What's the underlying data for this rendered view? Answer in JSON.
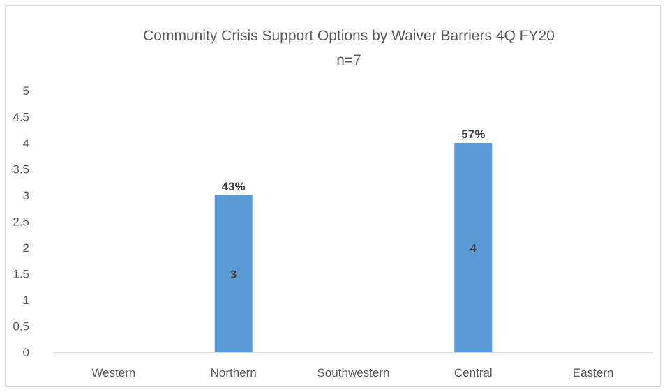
{
  "chart_data": {
    "type": "bar",
    "title": "Community Crisis Support Options by Waiver Barriers  4Q FY20",
    "subtitle": "n=7",
    "categories": [
      "Western",
      "Northern",
      "Southwestern",
      "Central",
      "Eastern"
    ],
    "values": [
      0,
      3,
      0,
      4,
      0
    ],
    "percent_labels": [
      "",
      "43%",
      "",
      "57%",
      ""
    ],
    "value_labels": [
      "",
      "3",
      "",
      "4",
      ""
    ],
    "ylim": [
      0,
      5
    ],
    "yticks": [
      "0",
      "0.5",
      "1",
      "1.5",
      "2",
      "2.5",
      "3",
      "3.5",
      "4",
      "4.5",
      "5"
    ],
    "grid": false,
    "legend": "none",
    "bar_color": "#5b9bd5"
  }
}
